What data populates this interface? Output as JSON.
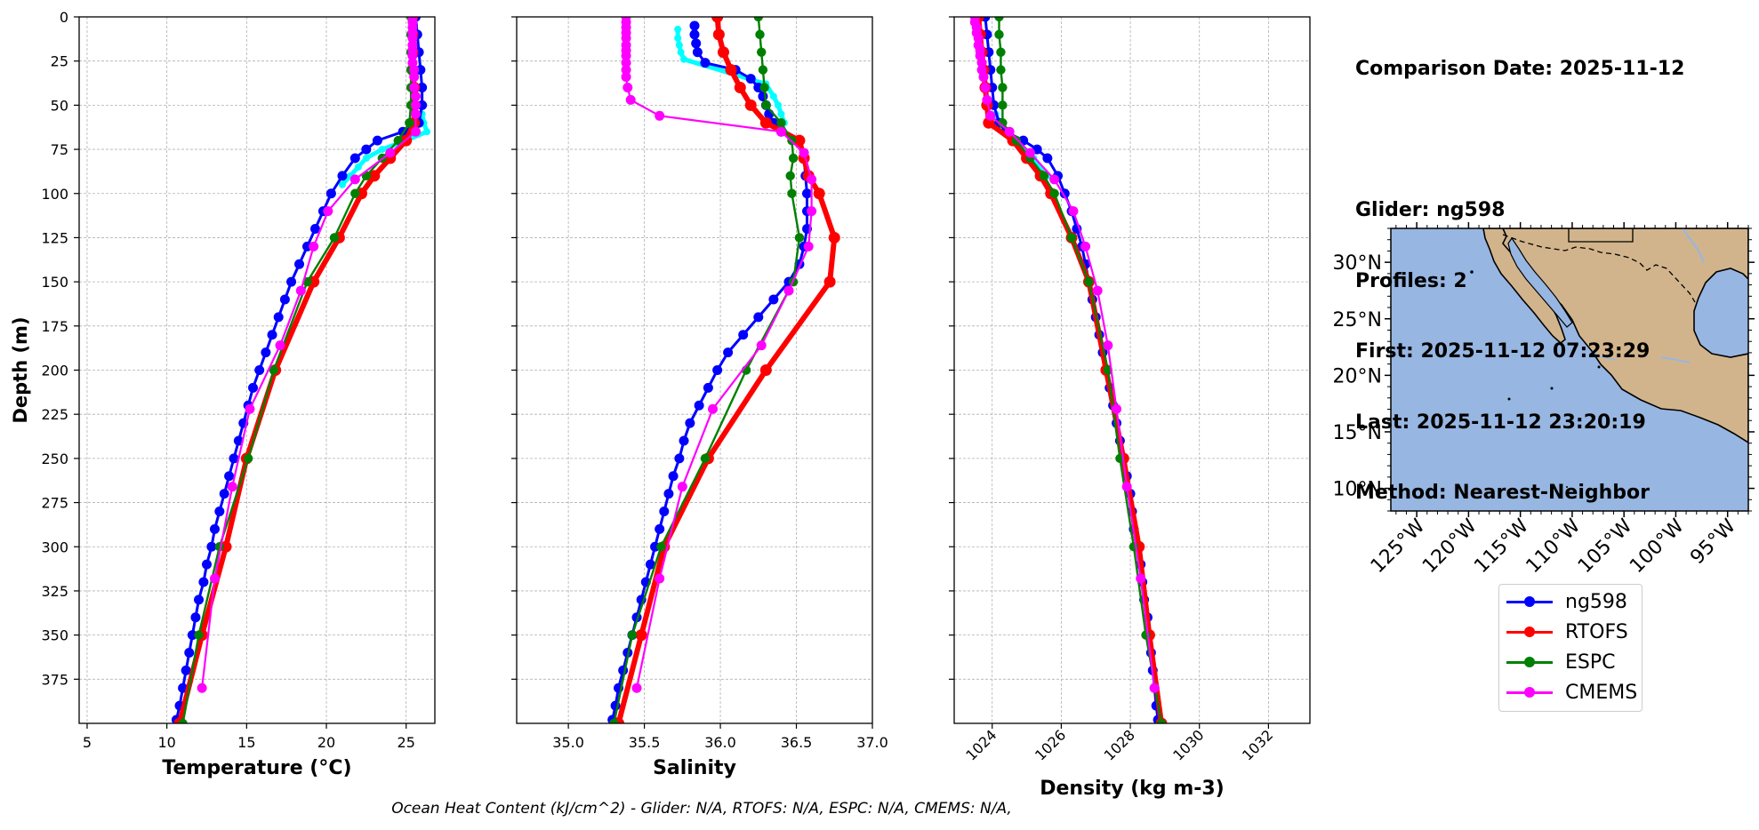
{
  "chart_data": [
    {
      "type": "line",
      "xlabel": "Temperature (°C)",
      "ylabel": "Depth (m)",
      "xlim": [
        4.5,
        26.8
      ],
      "ylim": [
        400,
        0
      ],
      "xticks": [
        "5",
        "10",
        "15",
        "20",
        "25"
      ],
      "yticks": [
        "0",
        "25",
        "50",
        "75",
        "100",
        "125",
        "150",
        "175",
        "200",
        "225",
        "250",
        "275",
        "300",
        "325",
        "350",
        "375"
      ],
      "grid": true,
      "series": [
        {
          "name": "ng598",
          "color": "#0000ff",
          "depth": [
            0,
            10,
            20,
            30,
            40,
            50,
            60,
            65,
            70,
            75,
            80,
            90,
            100,
            110,
            120,
            130,
            140,
            150,
            160,
            170,
            180,
            190,
            200,
            210,
            220,
            230,
            240,
            250,
            260,
            270,
            280,
            290,
            300,
            310,
            320,
            330,
            340,
            350,
            360,
            370,
            380,
            390,
            398
          ],
          "values": [
            25.6,
            25.7,
            25.8,
            25.9,
            26.0,
            26.0,
            25.8,
            24.8,
            23.2,
            22.5,
            21.8,
            21.0,
            20.3,
            19.8,
            19.3,
            18.8,
            18.3,
            17.8,
            17.4,
            17.0,
            16.6,
            16.2,
            15.8,
            15.4,
            15.1,
            14.8,
            14.5,
            14.2,
            13.9,
            13.6,
            13.3,
            13.0,
            12.8,
            12.5,
            12.3,
            12.0,
            11.8,
            11.6,
            11.4,
            11.2,
            11.0,
            10.8,
            10.6
          ]
        },
        {
          "name": "",
          "color": "#00ffff",
          "depth": [
            55,
            60,
            65,
            70,
            75,
            80,
            85,
            90,
            95
          ],
          "values": [
            26.0,
            26.1,
            26.3,
            25.0,
            23.5,
            22.5,
            22.0,
            21.5,
            21.0
          ]
        },
        {
          "name": "RTOFS",
          "color": "#ff0000",
          "depth": [
            0,
            10,
            20,
            30,
            40,
            50,
            60,
            70,
            80,
            90,
            100,
            125,
            150,
            200,
            250,
            300,
            350,
            400
          ],
          "values": [
            25.4,
            25.4,
            25.4,
            25.4,
            25.5,
            25.5,
            25.5,
            25.0,
            24.0,
            23.0,
            22.2,
            20.8,
            19.2,
            16.8,
            15.0,
            13.7,
            12.2,
            10.8
          ]
        },
        {
          "name": "ESPC",
          "color": "#008000",
          "depth": [
            0,
            10,
            20,
            30,
            40,
            50,
            60,
            70,
            80,
            90,
            100,
            125,
            150,
            200,
            250,
            300,
            350,
            400
          ],
          "values": [
            25.3,
            25.3,
            25.3,
            25.3,
            25.3,
            25.3,
            25.2,
            24.5,
            23.5,
            22.5,
            21.8,
            20.5,
            18.8,
            16.7,
            15.1,
            13.3,
            12.0,
            11.0
          ]
        },
        {
          "name": "CMEMS",
          "color": "#ff00ff",
          "depth": [
            0,
            3,
            6,
            9,
            12,
            16,
            19,
            22,
            26,
            30,
            34,
            40,
            45,
            50,
            55,
            65,
            77,
            92,
            110,
            130,
            155,
            186,
            222,
            266,
            318,
            380
          ],
          "values": [
            25.4,
            25.4,
            25.4,
            25.4,
            25.4,
            25.4,
            25.4,
            25.4,
            25.4,
            25.5,
            25.5,
            25.5,
            25.6,
            25.6,
            25.6,
            25.6,
            24.0,
            21.8,
            20.1,
            19.2,
            18.4,
            17.1,
            15.2,
            14.1,
            13.0,
            12.2
          ]
        }
      ]
    },
    {
      "type": "line",
      "xlabel": "Salinity",
      "xlim": [
        34.66,
        37.0
      ],
      "ylim": [
        400,
        0
      ],
      "xticks": [
        "35.0",
        "35.5",
        "36.0",
        "36.5",
        "37.0"
      ],
      "grid": true,
      "series": [
        {
          "name": "ng598",
          "color": "#0000ff",
          "depth": [
            5,
            10,
            15,
            20,
            26,
            30,
            35,
            40,
            45,
            50,
            55,
            60,
            65,
            70,
            80,
            90,
            100,
            110,
            120,
            130,
            140,
            150,
            160,
            170,
            180,
            190,
            200,
            210,
            220,
            230,
            240,
            250,
            260,
            270,
            280,
            290,
            300,
            310,
            320,
            330,
            340,
            350,
            360,
            370,
            380,
            390,
            398
          ],
          "values": [
            35.83,
            35.83,
            35.84,
            35.85,
            35.9,
            36.1,
            36.2,
            36.25,
            36.28,
            36.3,
            36.32,
            36.35,
            36.4,
            36.5,
            36.55,
            36.56,
            36.57,
            36.57,
            36.57,
            36.55,
            36.52,
            36.45,
            36.35,
            36.25,
            36.15,
            36.05,
            35.98,
            35.92,
            35.86,
            35.8,
            35.76,
            35.73,
            35.69,
            35.66,
            35.63,
            35.6,
            35.57,
            35.54,
            35.51,
            35.48,
            35.45,
            35.42,
            35.39,
            35.36,
            35.33,
            35.31,
            35.29
          ]
        },
        {
          "name": "",
          "color": "#00ffff",
          "depth": [
            7,
            12,
            16,
            20,
            24,
            38,
            45,
            50,
            55,
            60
          ],
          "values": [
            35.72,
            35.72,
            35.73,
            35.74,
            35.76,
            36.3,
            36.35,
            36.38,
            36.4,
            36.42
          ]
        },
        {
          "name": "RTOFS",
          "color": "#ff0000",
          "depth": [
            0,
            10,
            20,
            30,
            40,
            50,
            60,
            70,
            80,
            90,
            100,
            125,
            150,
            200,
            250,
            300,
            350,
            400
          ],
          "values": [
            35.98,
            35.99,
            36.02,
            36.07,
            36.13,
            36.2,
            36.3,
            36.52,
            36.55,
            36.58,
            36.65,
            36.75,
            36.72,
            36.3,
            35.92,
            35.63,
            35.48,
            35.33
          ]
        },
        {
          "name": "ESPC",
          "color": "#008000",
          "depth": [
            0,
            10,
            20,
            30,
            40,
            50,
            60,
            70,
            80,
            90,
            100,
            125,
            150,
            200,
            250,
            300,
            350,
            400
          ],
          "values": [
            36.25,
            36.26,
            36.27,
            36.28,
            36.29,
            36.3,
            36.4,
            36.47,
            36.48,
            36.46,
            36.47,
            36.52,
            36.48,
            36.17,
            35.9,
            35.61,
            35.42,
            35.3
          ]
        },
        {
          "name": "CMEMS",
          "color": "#ff00ff",
          "depth": [
            0,
            3,
            6,
            9,
            12,
            16,
            19,
            22,
            26,
            30,
            34,
            40,
            47,
            56,
            65,
            77,
            92,
            110,
            130,
            155,
            186,
            222,
            266,
            318,
            380
          ],
          "values": [
            35.38,
            35.38,
            35.38,
            35.38,
            35.38,
            35.38,
            35.38,
            35.38,
            35.38,
            35.38,
            35.38,
            35.39,
            35.41,
            35.6,
            36.4,
            36.55,
            36.6,
            36.6,
            36.58,
            36.45,
            36.27,
            35.95,
            35.75,
            35.6,
            35.45
          ]
        }
      ]
    },
    {
      "type": "line",
      "xlabel": "Density (kg m-3)",
      "xlim": [
        1022.9,
        1033.2
      ],
      "ylim": [
        400,
        0
      ],
      "xticks": [
        "1024",
        "1026",
        "1028",
        "1030",
        "1032"
      ],
      "grid": true,
      "series": [
        {
          "name": "ng598",
          "color": "#0000ff",
          "depth": [
            0,
            10,
            20,
            30,
            40,
            50,
            60,
            65,
            70,
            75,
            80,
            90,
            100,
            110,
            120,
            130,
            140,
            150,
            160,
            170,
            180,
            190,
            200,
            210,
            220,
            230,
            240,
            250,
            260,
            270,
            280,
            290,
            300,
            310,
            320,
            330,
            340,
            350,
            360,
            370,
            380,
            390,
            398
          ],
          "values": [
            1023.8,
            1023.85,
            1023.9,
            1023.95,
            1024.0,
            1024.05,
            1024.2,
            1024.4,
            1024.9,
            1025.3,
            1025.6,
            1025.9,
            1026.1,
            1026.3,
            1026.45,
            1026.6,
            1026.7,
            1026.8,
            1026.9,
            1027.0,
            1027.1,
            1027.2,
            1027.3,
            1027.4,
            1027.5,
            1027.6,
            1027.7,
            1027.8,
            1027.9,
            1028.0,
            1028.05,
            1028.1,
            1028.2,
            1028.3,
            1028.35,
            1028.4,
            1028.5,
            1028.55,
            1028.6,
            1028.65,
            1028.7,
            1028.75,
            1028.8
          ]
        },
        {
          "name": "",
          "color": "#00ffff",
          "depth": [
            55,
            60,
            65,
            70,
            80,
            90
          ],
          "values": [
            1024.1,
            1024.2,
            1024.4,
            1024.7,
            1025.2,
            1025.6
          ]
        },
        {
          "name": "RTOFS",
          "color": "#ff0000",
          "depth": [
            0,
            10,
            20,
            30,
            40,
            50,
            60,
            70,
            80,
            90,
            100,
            125,
            150,
            200,
            250,
            300,
            350,
            400
          ],
          "values": [
            1023.6,
            1023.65,
            1023.7,
            1023.75,
            1023.8,
            1023.85,
            1023.9,
            1024.6,
            1025.0,
            1025.4,
            1025.7,
            1026.3,
            1026.8,
            1027.3,
            1027.8,
            1028.25,
            1028.55,
            1028.9
          ]
        },
        {
          "name": "ESPC",
          "color": "#008000",
          "depth": [
            0,
            10,
            20,
            30,
            40,
            50,
            60,
            70,
            80,
            90,
            100,
            125,
            150,
            200,
            250,
            300,
            350,
            400
          ],
          "values": [
            1024.2,
            1024.2,
            1024.25,
            1024.25,
            1024.3,
            1024.3,
            1024.3,
            1024.7,
            1025.1,
            1025.5,
            1025.8,
            1026.3,
            1026.8,
            1027.35,
            1027.7,
            1028.1,
            1028.45,
            1028.9
          ]
        },
        {
          "name": "CMEMS",
          "color": "#ff00ff",
          "depth": [
            0,
            3,
            6,
            9,
            12,
            16,
            19,
            22,
            26,
            30,
            34,
            40,
            47,
            56,
            65,
            77,
            92,
            110,
            130,
            155,
            186,
            222,
            266,
            318,
            380
          ],
          "values": [
            1023.5,
            1023.5,
            1023.55,
            1023.55,
            1023.6,
            1023.6,
            1023.65,
            1023.65,
            1023.7,
            1023.7,
            1023.75,
            1023.8,
            1023.85,
            1023.95,
            1024.5,
            1025.1,
            1025.8,
            1026.35,
            1026.7,
            1027.05,
            1027.35,
            1027.6,
            1027.9,
            1028.3,
            1028.7
          ]
        }
      ]
    },
    {
      "type": "map",
      "lon_range": [
        -127.5,
        -93
      ],
      "lat_range": [
        8,
        33
      ],
      "xticks": [
        "125°W",
        "120°W",
        "115°W",
        "110°W",
        "105°W",
        "100°W",
        "95°W"
      ],
      "yticks": [
        "30°N",
        "25°N",
        "20°N",
        "15°N",
        "10°N"
      ],
      "ocean_color": "#97b6e1",
      "land_color": "#d2b48c"
    }
  ],
  "info": {
    "comparison_date": "Comparison Date: 2025-11-12",
    "glider": "Glider: ng598",
    "profiles": "Profiles: 2",
    "first": "First: 2025-11-12 07:23:29",
    "last": "Last: 2025-11-12 23:20:19",
    "method": "Method: Nearest-Neighbor"
  },
  "legend": [
    {
      "label": "ng598",
      "color": "#0000ff"
    },
    {
      "label": "RTOFS",
      "color": "#ff0000"
    },
    {
      "label": "ESPC",
      "color": "#008000"
    },
    {
      "label": "CMEMS",
      "color": "#ff00ff"
    }
  ],
  "caption": "Ocean Heat Content (kJ/cm^2) - Glider: N/A,  RTOFS: N/A,  ESPC: N/A,  CMEMS: N/A,"
}
